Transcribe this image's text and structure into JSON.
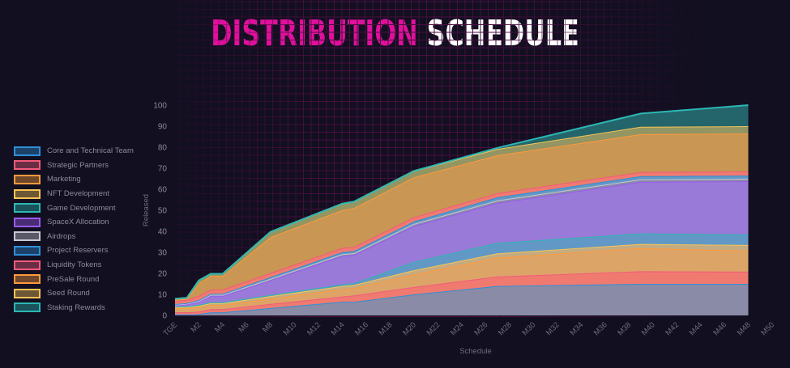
{
  "title": {
    "part1": "DISTRIBUTION",
    "part2": "SCHEDULE"
  },
  "colors": {
    "accent": "#e0109c",
    "background": "#120f21",
    "grid": "#3a0f34"
  },
  "chart_data": {
    "type": "area",
    "stacked": true,
    "title": "Distribution Schedule",
    "xlabel": "Schedule",
    "ylabel": "Released",
    "ylim": [
      0,
      100
    ],
    "yticks": [
      0,
      10,
      20,
      30,
      40,
      50,
      60,
      70,
      80,
      90,
      100
    ],
    "xticks": [
      "TGE",
      "M2",
      "M4",
      "M6",
      "M8",
      "M10",
      "M12",
      "M14",
      "M16",
      "M18",
      "M20",
      "M22",
      "M24",
      "M26",
      "M28",
      "M30",
      "M32",
      "M34",
      "M36",
      "M38",
      "M40",
      "M42",
      "M44",
      "M46",
      "M48",
      "M50"
    ],
    "x_months": [
      0,
      1,
      2,
      3,
      4,
      8,
      14,
      15,
      20,
      27,
      39,
      48
    ],
    "legend_position": "left",
    "series": [
      {
        "name": "Core and Technical Team",
        "line": "#2f8fd8",
        "fill": "#8a8ba6",
        "values": [
          0.5,
          0.5,
          0.6,
          1.5,
          1.5,
          3.5,
          6.5,
          6.5,
          10,
          14,
          15,
          15
        ]
      },
      {
        "name": "Strategic Partners",
        "line": "#f25a7a",
        "fill": "#f07a70",
        "values": [
          1.0,
          1.0,
          1.2,
          1.5,
          1.5,
          2.0,
          2.5,
          3.0,
          3.5,
          4.5,
          6.0,
          5.8
        ]
      },
      {
        "name": "Marketing",
        "line": "#ff9a3c",
        "fill": "#dda468",
        "values": [
          2.0,
          2.0,
          2.2,
          2.0,
          2.0,
          2.5,
          3.5,
          3.5,
          6.0,
          9.0,
          11.0,
          10.0
        ]
      },
      {
        "name": "NFT Development",
        "line": "#f7c455",
        "fill": "#c5ab80",
        "values": [
          0.5,
          0.5,
          0.6,
          0.8,
          0.8,
          1.2,
          1.5,
          1.5,
          2.0,
          2.0,
          2.0,
          2.7
        ]
      },
      {
        "name": "Game Development",
        "line": "#2bb7b3",
        "fill": "#6298c5",
        "values": [
          0.3,
          0.3,
          0.4,
          0.5,
          0.5,
          0.5,
          0.8,
          0.8,
          4.0,
          5.0,
          5.0,
          5.0
        ]
      },
      {
        "name": "SpaceX Allocation",
        "line": "#9b59f2",
        "fill": "#9a7ad8",
        "values": [
          0.5,
          1.0,
          1.5,
          3.0,
          3.0,
          7.0,
          13.5,
          13.5,
          17.0,
          19.0,
          24.5,
          25.3
        ]
      },
      {
        "name": "Airdrops",
        "line": "#c9c7d3",
        "fill": "#8a8ba6",
        "values": [
          0.3,
          0.3,
          0.4,
          0.5,
          0.5,
          0.7,
          0.8,
          0.8,
          1.0,
          1.2,
          1.2,
          1.2
        ]
      },
      {
        "name": "Project Reservers",
        "line": "#2f8fd8",
        "fill": "#6298c5",
        "values": [
          0.3,
          0.3,
          0.4,
          0.5,
          0.5,
          0.8,
          1.0,
          1.0,
          1.2,
          1.5,
          1.5,
          1.5
        ]
      },
      {
        "name": "Liquidity Tokens",
        "line": "#f25a7a",
        "fill": "#f07a70",
        "values": [
          1.5,
          1.5,
          2.0,
          2.0,
          2.0,
          2.0,
          2.0,
          2.0,
          2.0,
          2.0,
          2.0,
          2.0
        ]
      },
      {
        "name": "PreSale Round",
        "line": "#ff9a3c",
        "fill": "#c99653",
        "values": [
          0.5,
          0.5,
          6.0,
          6.5,
          6.5,
          17.0,
          18.0,
          18.5,
          19.0,
          18.0,
          18.0,
          18.0
        ]
      },
      {
        "name": "Seed Round",
        "line": "#f7c455",
        "fill": "#939562",
        "values": [
          0.5,
          0.5,
          1.3,
          1.0,
          1.0,
          2.5,
          3.0,
          3.0,
          3.0,
          3.0,
          3.5,
          3.5
        ]
      },
      {
        "name": "Staking Rewards",
        "line": "#2bb7b3",
        "fill": "#24656b",
        "values": [
          0,
          0,
          0,
          0,
          0,
          0,
          0,
          0,
          0,
          0.5,
          6.3,
          10.0
        ]
      }
    ]
  }
}
